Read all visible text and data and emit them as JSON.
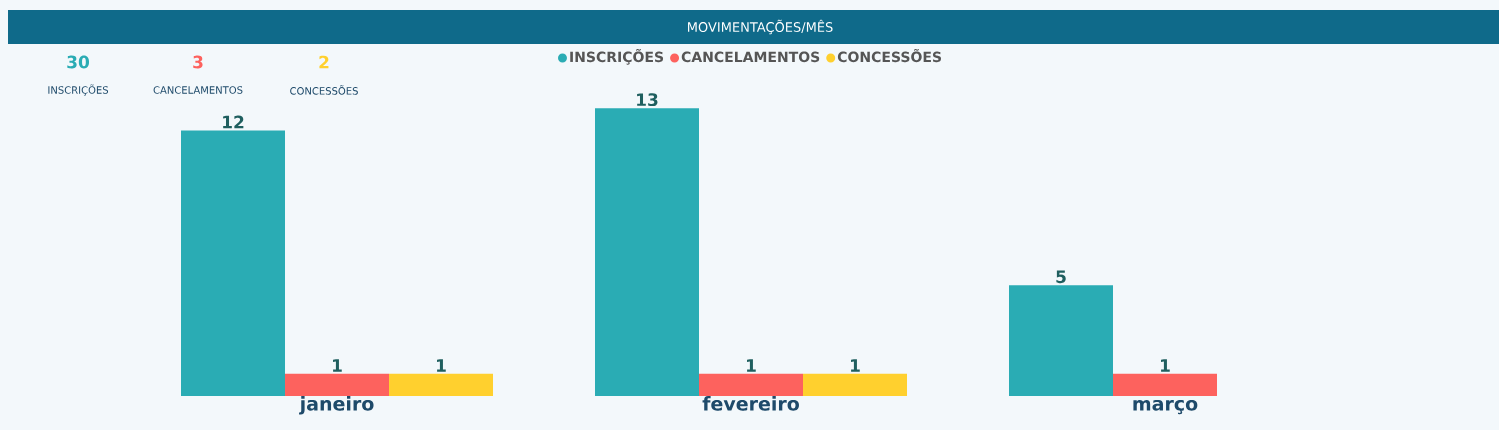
{
  "chart_data": {
    "type": "bar",
    "title": "MOVIMENTAÇÕES/MÊS",
    "categories": [
      "janeiro",
      "fevereiro",
      "março"
    ],
    "series": [
      {
        "name": "INSCRIÇÕES",
        "color": "#2aacb4",
        "values": [
          12,
          13,
          5
        ]
      },
      {
        "name": "CANCELAMENTOS",
        "color": "#fd625e",
        "values": [
          1,
          1,
          1
        ]
      },
      {
        "name": "CONCESSÕES",
        "color": "#ffd02e",
        "values": [
          1,
          1,
          null
        ]
      }
    ],
    "data_labels": true,
    "legend": "top",
    "annotations": [
      "30",
      "INSCRIÇÕES",
      "3",
      "CANCELAMENTOS",
      "2",
      "CONCESSÕES"
    ]
  }
}
